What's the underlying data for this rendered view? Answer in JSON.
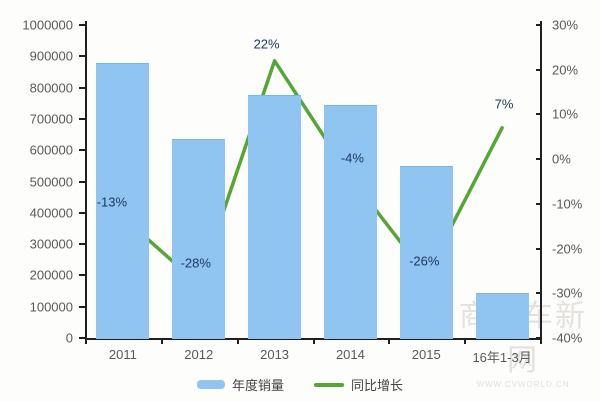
{
  "chart_data": {
    "type": "bar",
    "title": "",
    "categories": [
      "2011",
      "2012",
      "2013",
      "2014",
      "2015",
      "16年1-3月"
    ],
    "series": [
      {
        "name": "年度销量",
        "type": "bar",
        "axis": "left",
        "color": "#8fc5f0",
        "values": [
          880000,
          635000,
          775000,
          745000,
          550000,
          145000
        ]
      },
      {
        "name": "同比增长",
        "type": "line",
        "axis": "right",
        "color": "#55a636",
        "values": [
          -13,
          -28,
          22,
          -4,
          -26,
          7
        ],
        "point_labels": [
          "-13%",
          "-28%",
          "22%",
          "-4%",
          "-26%",
          "7%"
        ]
      }
    ],
    "left_axis": {
      "min": 0,
      "max": 1000000,
      "step": 100000
    },
    "right_axis": {
      "min": -40,
      "max": 30,
      "step": 10,
      "suffix": "%"
    },
    "grid": false,
    "legend_position": "bottom"
  },
  "colors": {
    "bar": "#8fc5f0",
    "line": "#55a636",
    "point_label": "#1f3864",
    "axis_text": "#595959",
    "axis_line": "#1f1f1f"
  },
  "watermark": {
    "main": "商用车新网",
    "sub": "WWW.CVWORLD.CN"
  }
}
